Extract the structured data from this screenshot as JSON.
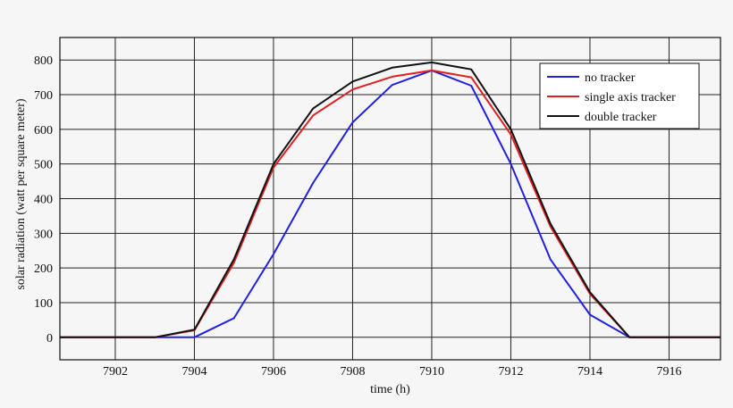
{
  "chart_data": {
    "type": "line",
    "title": "",
    "xlabel": "time (h)",
    "ylabel": "solar radiation (watt per square meter)",
    "xlim": [
      7900.6,
      7917.3
    ],
    "ylim": [
      -65,
      865
    ],
    "xticks": [
      7902,
      7904,
      7906,
      7908,
      7910,
      7912,
      7914,
      7916
    ],
    "yticks": [
      0,
      100,
      200,
      300,
      400,
      500,
      600,
      700,
      800
    ],
    "grid": true,
    "legend_position": "top-right",
    "series": [
      {
        "name": "no tracker",
        "color": "#2020e0",
        "x": [
          7900.6,
          7901,
          7902,
          7903,
          7904,
          7905,
          7906,
          7907,
          7908,
          7909,
          7910,
          7911,
          7912,
          7913,
          7914,
          7915,
          7916,
          7917,
          7917.3
        ],
        "y": [
          0,
          0,
          0,
          0,
          0,
          55,
          240,
          445,
          620,
          728,
          770,
          726,
          500,
          225,
          65,
          0,
          0,
          0,
          0
        ]
      },
      {
        "name": "single axis tracker",
        "color": "#e02020",
        "x": [
          7900.6,
          7901,
          7902,
          7903,
          7904,
          7905,
          7906,
          7907,
          7908,
          7909,
          7910,
          7911,
          7912,
          7913,
          7914,
          7915,
          7916,
          7917,
          7917.3
        ],
        "y": [
          0,
          0,
          0,
          0,
          20,
          215,
          490,
          640,
          715,
          752,
          770,
          750,
          585,
          320,
          125,
          0,
          0,
          0,
          0
        ]
      },
      {
        "name": "double tracker",
        "color": "#111111",
        "x": [
          7900.6,
          7901,
          7902,
          7903,
          7904,
          7905,
          7906,
          7907,
          7908,
          7909,
          7910,
          7911,
          7912,
          7913,
          7914,
          7915,
          7916,
          7917,
          7917.3
        ],
        "y": [
          0,
          0,
          0,
          0,
          22,
          225,
          500,
          660,
          738,
          778,
          793,
          773,
          600,
          328,
          130,
          0,
          0,
          0,
          0
        ]
      }
    ]
  }
}
